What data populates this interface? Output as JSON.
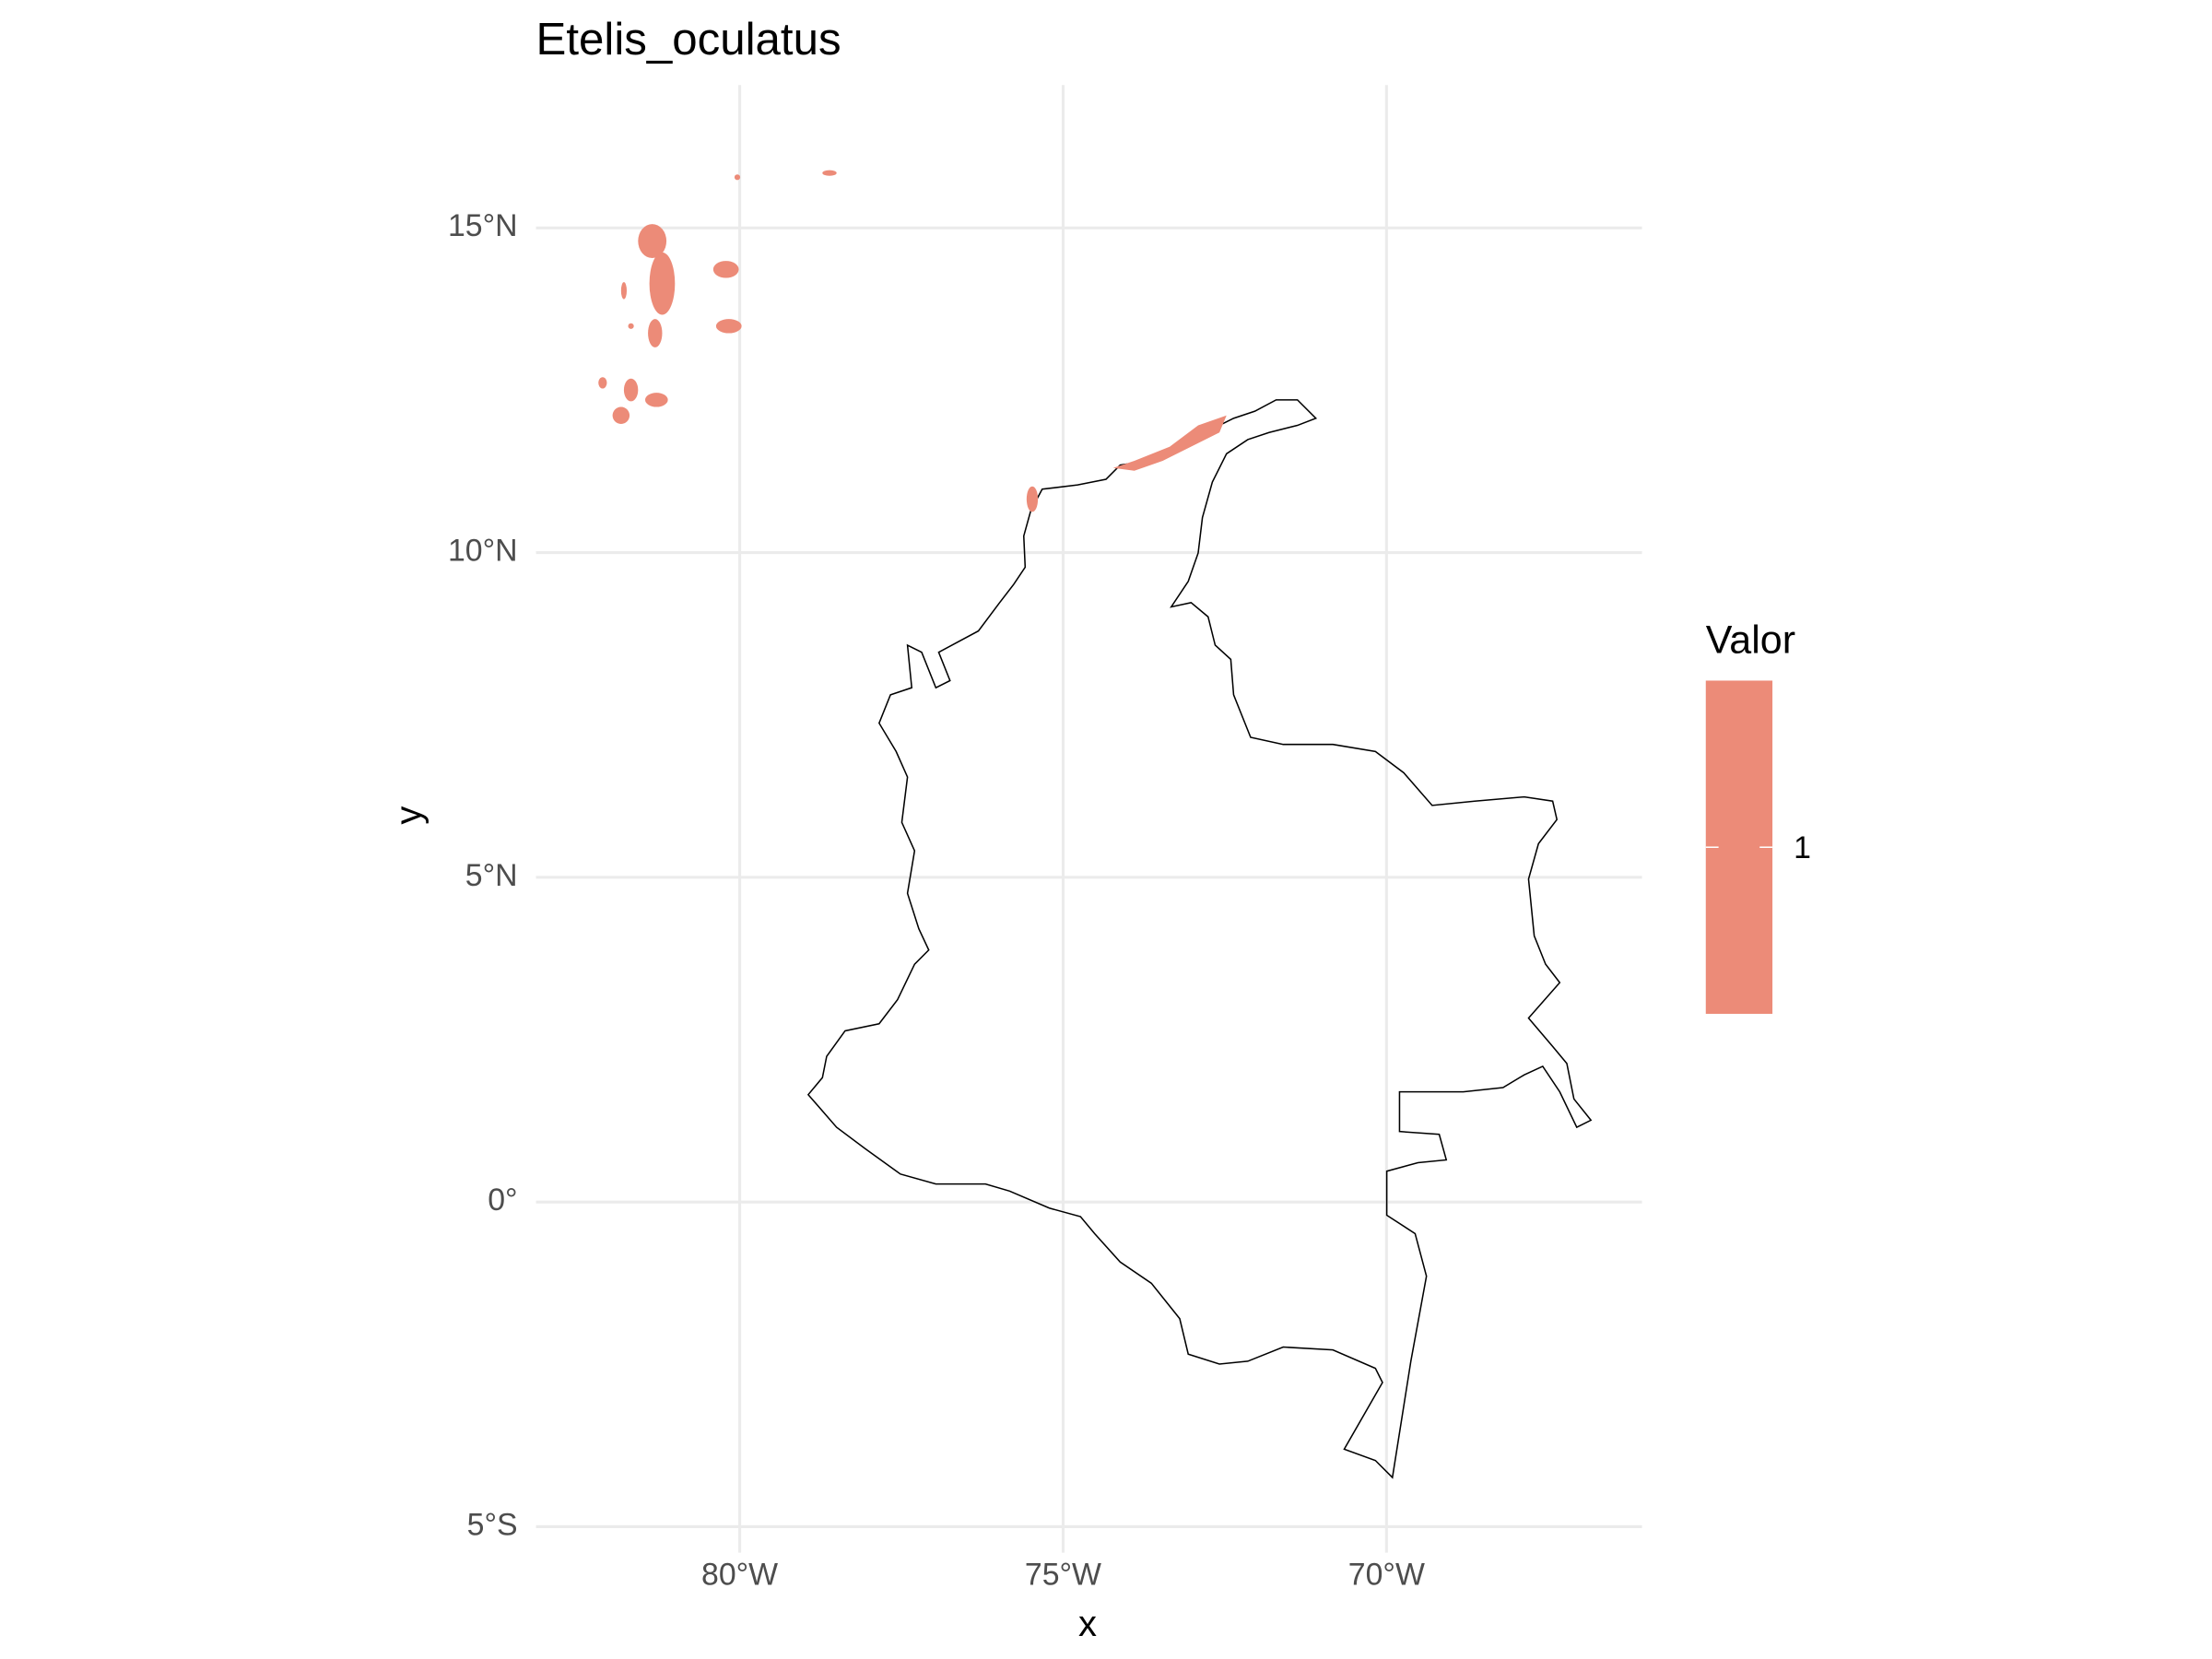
{
  "chart_data": {
    "type": "map",
    "title": "Etelis_oculatus",
    "x_label": "x",
    "y_label": "y",
    "xlim": [
      -83.15,
      -66.05
    ],
    "ylim": [
      -5.4,
      17.2
    ],
    "xticks": [
      {
        "value": -80,
        "label": "80°W"
      },
      {
        "value": -75,
        "label": "75°W"
      },
      {
        "value": -70,
        "label": "70°W"
      }
    ],
    "yticks": [
      {
        "value": -5,
        "label": "5°S"
      },
      {
        "value": 0,
        "label": "0°"
      },
      {
        "value": 5,
        "label": "5°N"
      },
      {
        "value": 10,
        "label": "10°N"
      },
      {
        "value": 15,
        "label": "15°N"
      }
    ],
    "grid": true,
    "legend": {
      "title": "Valor",
      "values": [
        1
      ],
      "color": "#ec8b78"
    }
  }
}
